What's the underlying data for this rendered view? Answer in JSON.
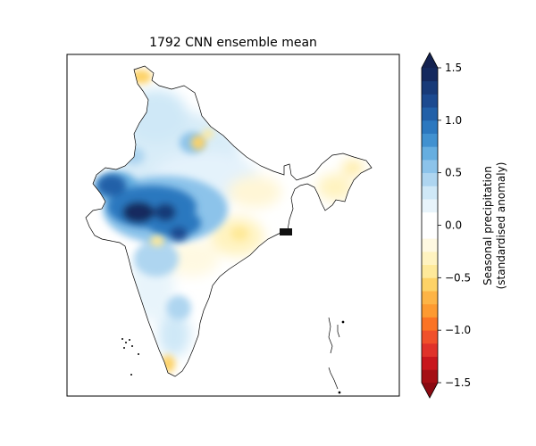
{
  "figure": {
    "title": "1792 CNN ensemble mean"
  },
  "colorbar": {
    "label_line1": "Seasonal precipitation",
    "label_line2": "(standardised anomaly)",
    "min": -1.5,
    "max": 1.5,
    "extend": "both",
    "ticks": [
      "1.5",
      "1.0",
      "0.5",
      "0.0",
      "−0.5",
      "−1.0",
      "−1.5"
    ],
    "levels": [
      -1.5,
      -1.375,
      -1.25,
      -1.125,
      -1.0,
      -0.875,
      -0.75,
      -0.625,
      -0.5,
      -0.375,
      -0.25,
      -0.125,
      0.0,
      0.125,
      0.25,
      0.375,
      0.5,
      0.625,
      0.75,
      0.875,
      1.0,
      1.125,
      1.25,
      1.375,
      1.5
    ],
    "colors": [
      "#a50f15",
      "#c8161d",
      "#e0322a",
      "#f0502a",
      "#fb7324",
      "#fd9a31",
      "#fdb446",
      "#fdd266",
      "#fee99a",
      "#fff3c0",
      "#fff9e2",
      "#ffffff",
      "#ffffff",
      "#e8f4fb",
      "#cfe8f7",
      "#aed5f0",
      "#8cc3ea",
      "#66aee0",
      "#4191d0",
      "#2c78bf",
      "#2260a8",
      "#1c4a90",
      "#183a78",
      "#14295e"
    ],
    "extend_low_color": "#8b0a12",
    "extend_high_color": "#142250"
  },
  "map": {
    "region": "India",
    "anomalies": [
      {
        "label": "west-central-wet",
        "value": 1.4
      },
      {
        "label": "gujarat-wet",
        "value": 1.1
      },
      {
        "label": "central-wet",
        "value": 1.0
      },
      {
        "label": "north-light-wet",
        "value": 0.3
      },
      {
        "label": "east-light-dry",
        "value": -0.2
      },
      {
        "label": "kashmir-dry",
        "value": -0.4
      },
      {
        "label": "southern-tip-dry",
        "value": -0.4
      }
    ]
  },
  "colors": {
    "background": "#ffffff",
    "frame": "#000000"
  }
}
